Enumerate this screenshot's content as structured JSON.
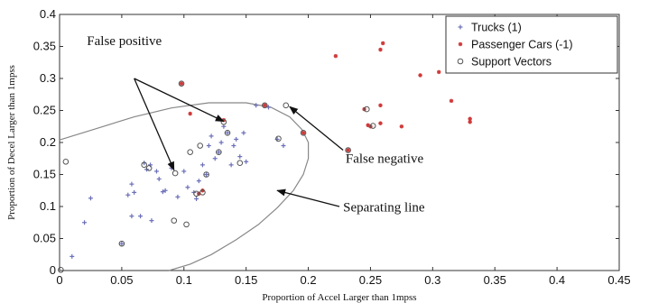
{
  "chart_data": {
    "type": "scatter",
    "xlabel": "Proportion of Accel Larger than 1mpss",
    "ylabel": "Proportion of Decel Larger than 1mpss",
    "xlim": [
      0,
      0.45
    ],
    "ylim": [
      0,
      0.4
    ],
    "xticks": [
      "0",
      "0.05",
      "0.1",
      "0.15",
      "0.2",
      "0.25",
      "0.3",
      "0.35",
      "0.4",
      "0.45"
    ],
    "yticks": [
      "0",
      "0.05",
      "0.1",
      "0.15",
      "0.2",
      "0.25",
      "0.3",
      "0.35",
      "0.4"
    ],
    "grid": false,
    "legend_position": "top-right",
    "legend": [
      "Trucks (1)",
      "Passenger Cars (-1)",
      "Support Vectors"
    ],
    "colors": {
      "trucks": "#6b6fb8",
      "cars": "#d03a3a",
      "support": "#555555",
      "boundary": "#888888"
    },
    "series": [
      {
        "name": "Trucks (1)",
        "marker": "plus",
        "points": [
          [
            0.01,
            0.022
          ],
          [
            0.02,
            0.075
          ],
          [
            0.025,
            0.113
          ],
          [
            0.05,
            0.042
          ],
          [
            0.055,
            0.118
          ],
          [
            0.058,
            0.085
          ],
          [
            0.058,
            0.135
          ],
          [
            0.06,
            0.122
          ],
          [
            0.065,
            0.085
          ],
          [
            0.068,
            0.168
          ],
          [
            0.07,
            0.158
          ],
          [
            0.073,
            0.165
          ],
          [
            0.074,
            0.078
          ],
          [
            0.078,
            0.155
          ],
          [
            0.08,
            0.143
          ],
          [
            0.083,
            0.123
          ],
          [
            0.085,
            0.125
          ],
          [
            0.09,
            0.16
          ],
          [
            0.095,
            0.115
          ],
          [
            0.1,
            0.155
          ],
          [
            0.103,
            0.13
          ],
          [
            0.108,
            0.122
          ],
          [
            0.11,
            0.112
          ],
          [
            0.112,
            0.14
          ],
          [
            0.115,
            0.165
          ],
          [
            0.118,
            0.15
          ],
          [
            0.12,
            0.195
          ],
          [
            0.122,
            0.21
          ],
          [
            0.125,
            0.175
          ],
          [
            0.128,
            0.185
          ],
          [
            0.13,
            0.2
          ],
          [
            0.132,
            0.225
          ],
          [
            0.135,
            0.215
          ],
          [
            0.138,
            0.165
          ],
          [
            0.14,
            0.195
          ],
          [
            0.142,
            0.205
          ],
          [
            0.145,
            0.178
          ],
          [
            0.148,
            0.215
          ],
          [
            0.15,
            0.17
          ],
          [
            0.158,
            0.258
          ],
          [
            0.168,
            0.255
          ],
          [
            0.175,
            0.205
          ],
          [
            0.18,
            0.195
          ]
        ]
      },
      {
        "name": "Passenger Cars (-1)",
        "marker": "asterisk",
        "points": [
          [
            0.098,
            0.292
          ],
          [
            0.105,
            0.245
          ],
          [
            0.112,
            0.12
          ],
          [
            0.115,
            0.125
          ],
          [
            0.132,
            0.235
          ],
          [
            0.165,
            0.258
          ],
          [
            0.196,
            0.215
          ],
          [
            0.222,
            0.335
          ],
          [
            0.232,
            0.188
          ],
          [
            0.245,
            0.252
          ],
          [
            0.248,
            0.227
          ],
          [
            0.25,
            0.225
          ],
          [
            0.258,
            0.345
          ],
          [
            0.26,
            0.355
          ],
          [
            0.258,
            0.258
          ],
          [
            0.258,
            0.23
          ],
          [
            0.275,
            0.225
          ],
          [
            0.29,
            0.305
          ],
          [
            0.305,
            0.31
          ],
          [
            0.315,
            0.265
          ],
          [
            0.33,
            0.237
          ],
          [
            0.33,
            0.232
          ]
        ]
      },
      {
        "name": "Support Vectors",
        "marker": "circle",
        "points": [
          [
            0.005,
            0.17
          ],
          [
            0.001,
            0.001
          ],
          [
            0.05,
            0.042
          ],
          [
            0.068,
            0.165
          ],
          [
            0.072,
            0.16
          ],
          [
            0.092,
            0.078
          ],
          [
            0.093,
            0.152
          ],
          [
            0.098,
            0.292
          ],
          [
            0.102,
            0.072
          ],
          [
            0.105,
            0.185
          ],
          [
            0.11,
            0.12
          ],
          [
            0.113,
            0.195
          ],
          [
            0.115,
            0.122
          ],
          [
            0.118,
            0.15
          ],
          [
            0.128,
            0.185
          ],
          [
            0.132,
            0.232
          ],
          [
            0.135,
            0.215
          ],
          [
            0.145,
            0.168
          ],
          [
            0.165,
            0.258
          ],
          [
            0.176,
            0.206
          ],
          [
            0.182,
            0.258
          ],
          [
            0.196,
            0.215
          ],
          [
            0.232,
            0.188
          ],
          [
            0.247,
            0.252
          ],
          [
            0.252,
            0.226
          ]
        ]
      }
    ],
    "separating_line": [
      [
        0.0,
        0.204
      ],
      [
        0.03,
        0.222
      ],
      [
        0.06,
        0.24
      ],
      [
        0.09,
        0.254
      ],
      [
        0.12,
        0.262
      ],
      [
        0.15,
        0.262
      ],
      [
        0.17,
        0.255
      ],
      [
        0.185,
        0.24
      ],
      [
        0.195,
        0.22
      ],
      [
        0.2,
        0.2
      ],
      [
        0.2,
        0.175
      ],
      [
        0.196,
        0.15
      ],
      [
        0.188,
        0.125
      ],
      [
        0.175,
        0.098
      ],
      [
        0.16,
        0.072
      ],
      [
        0.142,
        0.048
      ],
      [
        0.122,
        0.025
      ],
      [
        0.105,
        0.01
      ],
      [
        0.088,
        0.0
      ]
    ],
    "annotations": [
      {
        "text": "False positive",
        "label_pos": [
          0.022,
          0.352
        ],
        "arrow_tail": [
          0.06,
          0.3
        ],
        "arrow_heads": [
          [
            0.132,
            0.233
          ],
          [
            0.092,
            0.157
          ]
        ]
      },
      {
        "text": "False negative",
        "label_pos": [
          0.23,
          0.168
        ],
        "arrow_tail": [
          0.228,
          0.188
        ],
        "arrow_heads": [
          [
            0.185,
            0.256
          ]
        ]
      },
      {
        "text": "Separating line",
        "label_pos": [
          0.228,
          0.092
        ],
        "arrow_tail": [
          0.225,
          0.1
        ],
        "arrow_heads": [
          [
            0.175,
            0.125
          ]
        ]
      }
    ]
  }
}
